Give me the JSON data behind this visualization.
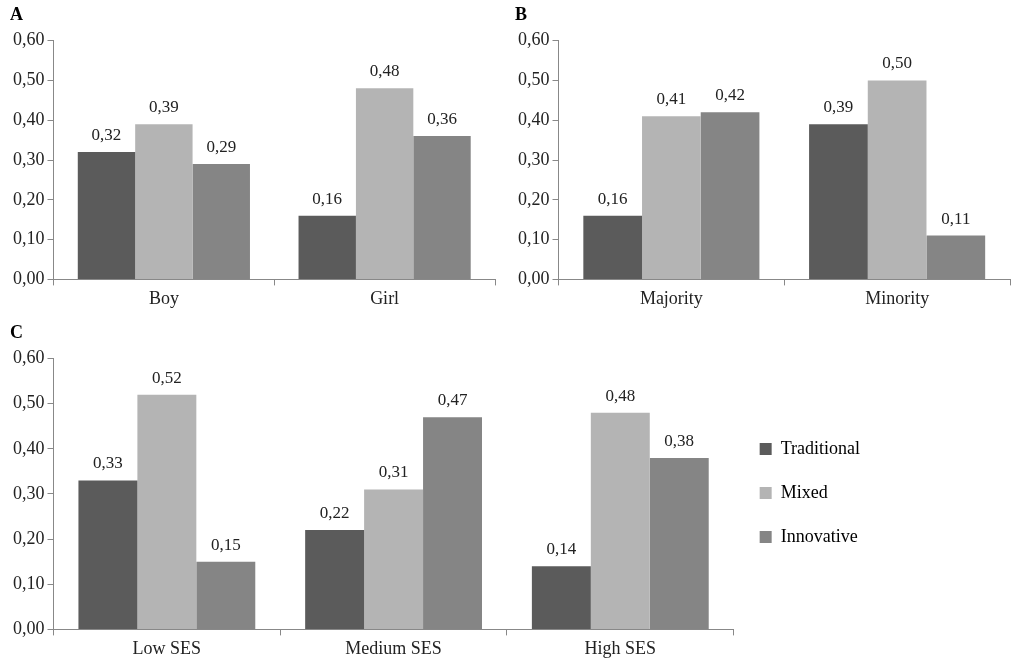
{
  "chart_data": [
    {
      "type": "bar",
      "title": "A",
      "categories": [
        "Boy",
        "Girl"
      ],
      "ylim": [
        0,
        0.6
      ],
      "yticks": [
        {
          "value": 0,
          "label": "0,00"
        },
        {
          "value": 0.1,
          "label": "0,10"
        },
        {
          "value": 0.2,
          "label": "0,20"
        },
        {
          "value": 0.3,
          "label": "0,30"
        },
        {
          "value": 0.4,
          "label": "0,40"
        },
        {
          "value": 0.5,
          "label": "0,50"
        },
        {
          "value": 0.6,
          "label": "0,60"
        }
      ],
      "legend": false,
      "series": [
        {
          "color": "#5b5b5b",
          "values": [
            0.32,
            0.16
          ],
          "value_labels": [
            "0,32",
            "0,16"
          ]
        },
        {
          "color": "#b4b4b4",
          "values": [
            0.39,
            0.48
          ],
          "value_labels": [
            "0,39",
            "0,48"
          ]
        },
        {
          "color": "#858585",
          "values": [
            0.29,
            0.36
          ],
          "value_labels": [
            "0,29",
            "0,36"
          ]
        }
      ]
    },
    {
      "type": "bar",
      "title": "B",
      "categories": [
        "Majority",
        "Minority"
      ],
      "ylim": [
        0,
        0.6
      ],
      "yticks": [
        {
          "value": 0,
          "label": "0,00"
        },
        {
          "value": 0.1,
          "label": "0,10"
        },
        {
          "value": 0.2,
          "label": "0,20"
        },
        {
          "value": 0.3,
          "label": "0,30"
        },
        {
          "value": 0.4,
          "label": "0,40"
        },
        {
          "value": 0.5,
          "label": "0,50"
        },
        {
          "value": 0.6,
          "label": "0,60"
        }
      ],
      "legend": false,
      "series": [
        {
          "color": "#5b5b5b",
          "values": [
            0.16,
            0.39
          ],
          "value_labels": [
            "0,16",
            "0,39"
          ]
        },
        {
          "color": "#b4b4b4",
          "values": [
            0.41,
            0.5
          ],
          "value_labels": [
            "0,41",
            "0,50"
          ]
        },
        {
          "color": "#858585",
          "values": [
            0.42,
            0.11
          ],
          "value_labels": [
            "0,42",
            "0,11"
          ]
        }
      ]
    },
    {
      "type": "bar",
      "title": "C",
      "categories": [
        "Low SES",
        "Medium SES",
        "High SES"
      ],
      "ylim": [
        0,
        0.6
      ],
      "yticks": [
        {
          "value": 0,
          "label": "0,00"
        },
        {
          "value": 0.1,
          "label": "0,10"
        },
        {
          "value": 0.2,
          "label": "0,20"
        },
        {
          "value": 0.3,
          "label": "0,30"
        },
        {
          "value": 0.4,
          "label": "0,40"
        },
        {
          "value": 0.5,
          "label": "0,50"
        },
        {
          "value": 0.6,
          "label": "0,60"
        }
      ],
      "legend": "right",
      "series": [
        {
          "name": "Traditional",
          "color": "#5b5b5b",
          "values": [
            0.33,
            0.22,
            0.14
          ],
          "value_labels": [
            "0,33",
            "0,22",
            "0,14"
          ]
        },
        {
          "name": "Mixed",
          "color": "#b4b4b4",
          "values": [
            0.52,
            0.31,
            0.48
          ],
          "value_labels": [
            "0,52",
            "0,31",
            "0,48"
          ]
        },
        {
          "name": "Innovative",
          "color": "#858585",
          "values": [
            0.15,
            0.47,
            0.38
          ],
          "value_labels": [
            "0,15",
            "0,47",
            "0,38"
          ]
        }
      ]
    }
  ]
}
